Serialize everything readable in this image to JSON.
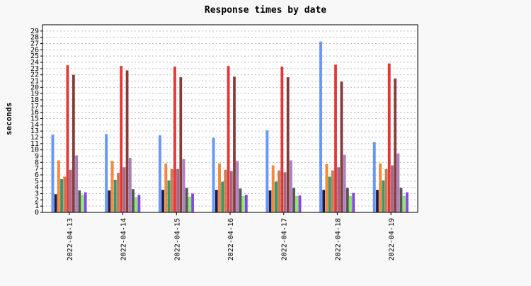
{
  "chart_data": {
    "type": "bar",
    "title": "Response times by date",
    "xlabel": "",
    "ylabel": "seconds",
    "ylim": [
      0,
      30
    ],
    "yticks": [
      0,
      1,
      2,
      3,
      4,
      5,
      6,
      7,
      8,
      9,
      10,
      11,
      12,
      13,
      14,
      15,
      16,
      17,
      18,
      19,
      20,
      21,
      22,
      23,
      24,
      25,
      26,
      27,
      28,
      29
    ],
    "grid": true,
    "legend": "none",
    "categories": [
      "2022-04-13",
      "2022-04-14",
      "2022-04-15",
      "2022-04-16",
      "2022-04-17",
      "2022-04-18",
      "2022-04-19"
    ],
    "series": [
      {
        "color": "#6699ff",
        "values": [
          12.4,
          12.5,
          12.3,
          11.9,
          13.1,
          27.3,
          11.2
        ]
      },
      {
        "color": "#1a1a4d",
        "values": [
          2.9,
          3.5,
          3.6,
          3.6,
          3.5,
          3.6,
          3.6
        ]
      },
      {
        "color": "#ff8833",
        "values": [
          8.3,
          8.2,
          7.8,
          7.8,
          7.5,
          7.7,
          7.8
        ]
      },
      {
        "color": "#339966",
        "values": [
          5.3,
          5.2,
          5.1,
          4.9,
          4.9,
          5.7,
          5.1
        ]
      },
      {
        "color": "#d07a4f",
        "values": [
          5.7,
          6.3,
          6.9,
          6.8,
          6.7,
          6.7,
          6.9
        ]
      },
      {
        "color": "#ee3333",
        "values": [
          23.5,
          23.4,
          23.3,
          23.4,
          23.3,
          23.6,
          23.8
        ]
      },
      {
        "color": "#aa6688",
        "values": [
          6.8,
          7.2,
          6.9,
          6.6,
          6.4,
          7.2,
          7.5
        ]
      },
      {
        "color": "#8b3a3a",
        "values": [
          22.0,
          22.7,
          21.6,
          21.7,
          21.6,
          20.9,
          21.4
        ]
      },
      {
        "color": "#b080c0",
        "values": [
          9.1,
          8.7,
          8.5,
          8.2,
          8.3,
          9.2,
          9.4
        ]
      },
      {
        "color": "#555555",
        "values": [
          3.5,
          3.7,
          3.9,
          3.8,
          3.9,
          3.9,
          3.9
        ]
      },
      {
        "color": "#88ee66",
        "values": [
          2.8,
          2.4,
          2.5,
          2.6,
          2.6,
          2.6,
          2.6
        ]
      },
      {
        "color": "#8844ee",
        "values": [
          3.2,
          2.8,
          3.0,
          2.8,
          2.7,
          3.1,
          3.2
        ]
      }
    ]
  }
}
